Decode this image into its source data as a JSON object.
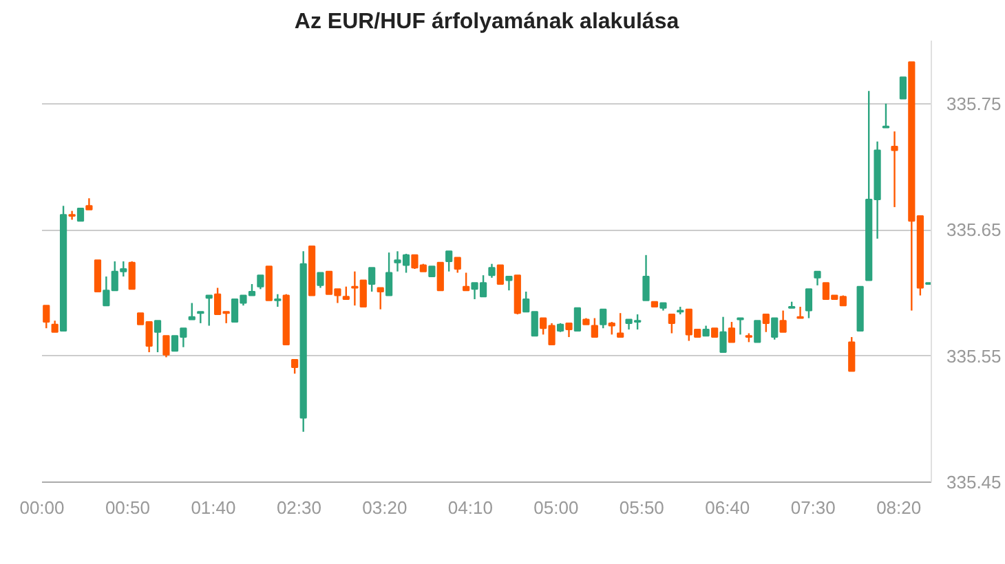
{
  "chart_data": {
    "type": "candlestick",
    "title": "Az EUR/HUF árfolyamának alakulása",
    "x": [
      0.042,
      0.125,
      0.208,
      0.292,
      0.375,
      0.458,
      0.542,
      0.625,
      0.708,
      0.792,
      0.875,
      0.958,
      1.042,
      1.125,
      1.208,
      1.292,
      1.375,
      1.458,
      1.542,
      1.625,
      1.708,
      1.792,
      1.875,
      1.958,
      2.042,
      2.125,
      2.208,
      2.292,
      2.375,
      2.458,
      2.542,
      2.625,
      2.708,
      2.792,
      2.875,
      2.958,
      3.042,
      3.125,
      3.208,
      3.292,
      3.375,
      3.458,
      3.542,
      3.625,
      3.708,
      3.792,
      3.875,
      3.958,
      4.042,
      4.125,
      4.208,
      4.292,
      4.375,
      4.458,
      4.542,
      4.625,
      4.708,
      4.792,
      4.875,
      4.958,
      5.042,
      5.125,
      5.208,
      5.292,
      5.375,
      5.458,
      5.542,
      5.625,
      5.708,
      5.792,
      5.875,
      5.958,
      6.042,
      6.125,
      6.208,
      6.292,
      6.375,
      6.458,
      6.542,
      6.625,
      6.708,
      6.792,
      6.875,
      6.958,
      7.042,
      7.125,
      7.208,
      7.292,
      7.375,
      7.458,
      7.542,
      7.625,
      7.708,
      7.792,
      7.875,
      7.958,
      8.042,
      8.125,
      8.208,
      8.292,
      8.375,
      8.458,
      8.542,
      8.625
    ],
    "ohlc": [
      [
        335.59,
        335.59,
        335.572,
        335.577
      ],
      [
        335.575,
        335.578,
        335.569,
        335.569
      ],
      [
        335.57,
        335.669,
        335.57,
        335.662
      ],
      [
        335.662,
        335.665,
        335.658,
        335.661
      ],
      [
        335.657,
        335.667,
        335.657,
        335.667
      ],
      [
        335.669,
        335.675,
        335.666,
        335.666
      ],
      [
        335.626,
        335.626,
        335.601,
        335.601
      ],
      [
        335.59,
        335.613,
        335.59,
        335.602
      ],
      [
        335.602,
        335.625,
        335.602,
        335.617
      ],
      [
        335.617,
        335.625,
        335.613,
        335.619
      ],
      [
        335.624,
        335.625,
        335.603,
        335.603
      ],
      [
        335.584,
        335.584,
        335.575,
        335.575
      ],
      [
        335.577,
        335.577,
        335.553,
        335.558
      ],
      [
        335.569,
        335.578,
        335.553,
        335.578
      ],
      [
        335.566,
        335.566,
        335.549,
        335.551
      ],
      [
        335.554,
        335.566,
        335.554,
        335.566
      ],
      [
        335.565,
        335.572,
        335.557,
        335.572
      ],
      [
        335.579,
        335.592,
        335.579,
        335.581
      ],
      [
        335.584,
        335.585,
        335.576,
        335.585
      ],
      [
        335.596,
        335.598,
        335.574,
        335.598
      ],
      [
        335.599,
        335.604,
        335.583,
        335.583
      ],
      [
        335.585,
        335.585,
        335.576,
        335.584
      ],
      [
        335.577,
        335.595,
        335.577,
        335.595
      ],
      [
        335.592,
        335.598,
        335.59,
        335.598
      ],
      [
        335.598,
        335.607,
        335.598,
        335.601
      ],
      [
        335.605,
        335.614,
        335.603,
        335.614
      ],
      [
        335.621,
        335.621,
        335.594,
        335.594
      ],
      [
        335.594,
        335.599,
        335.589,
        335.595
      ],
      [
        335.598,
        335.599,
        335.559,
        335.559
      ],
      [
        335.547,
        335.547,
        335.536,
        335.541
      ],
      [
        335.501,
        335.633,
        335.49,
        335.623
      ],
      [
        335.637,
        335.637,
        335.598,
        335.598
      ],
      [
        335.606,
        335.616,
        335.604,
        335.616
      ],
      [
        335.617,
        335.617,
        335.599,
        335.599
      ],
      [
        335.603,
        335.603,
        335.592,
        335.598
      ],
      [
        335.597,
        335.605,
        335.595,
        335.595
      ],
      [
        335.605,
        335.617,
        335.59,
        335.604
      ],
      [
        335.61,
        335.61,
        335.589,
        335.589
      ],
      [
        335.607,
        335.62,
        335.601,
        335.62
      ],
      [
        335.604,
        335.604,
        335.587,
        335.601
      ],
      [
        335.598,
        335.632,
        335.598,
        335.616
      ],
      [
        335.624,
        335.633,
        335.617,
        335.626
      ],
      [
        335.622,
        335.631,
        335.616,
        335.63
      ],
      [
        335.63,
        335.63,
        335.619,
        335.62
      ],
      [
        335.622,
        335.623,
        335.617,
        335.617
      ],
      [
        335.613,
        335.621,
        335.613,
        335.621
      ],
      [
        335.624,
        335.624,
        335.602,
        335.602
      ],
      [
        335.625,
        335.633,
        335.617,
        335.633
      ],
      [
        335.628,
        335.628,
        335.616,
        335.619
      ],
      [
        335.605,
        335.616,
        335.602,
        335.602
      ],
      [
        335.603,
        335.608,
        335.595,
        335.608
      ],
      [
        335.597,
        335.614,
        335.597,
        335.608
      ],
      [
        335.614,
        335.623,
        335.612,
        335.62
      ],
      [
        335.622,
        335.622,
        335.607,
        335.607
      ],
      [
        335.61,
        335.613,
        335.602,
        335.613
      ],
      [
        335.614,
        335.614,
        335.583,
        335.584
      ],
      [
        335.585,
        335.601,
        335.585,
        335.595
      ],
      [
        335.566,
        335.585,
        335.566,
        335.585
      ],
      [
        335.58,
        335.58,
        335.567,
        335.572
      ],
      [
        335.574,
        335.576,
        335.559,
        335.559
      ],
      [
        335.57,
        335.576,
        335.569,
        335.575
      ],
      [
        335.576,
        335.576,
        335.565,
        335.571
      ],
      [
        335.57,
        335.588,
        335.57,
        335.588
      ],
      [
        335.579,
        335.58,
        335.575,
        335.575
      ],
      [
        335.574,
        335.58,
        335.565,
        335.565
      ],
      [
        335.575,
        335.587,
        335.572,
        335.587
      ],
      [
        335.576,
        335.577,
        335.567,
        335.574
      ],
      [
        335.568,
        335.584,
        335.565,
        335.565
      ],
      [
        335.576,
        335.579,
        335.571,
        335.579
      ],
      [
        335.577,
        335.583,
        335.571,
        335.578
      ],
      [
        335.594,
        335.63,
        335.594,
        335.613
      ],
      [
        335.593,
        335.593,
        335.589,
        335.589
      ],
      [
        335.588,
        335.592,
        335.586,
        335.592
      ],
      [
        335.583,
        335.583,
        335.568,
        335.576
      ],
      [
        335.585,
        335.589,
        335.583,
        335.586
      ],
      [
        335.587,
        335.587,
        335.562,
        335.567
      ],
      [
        335.571,
        335.571,
        335.565,
        335.565
      ],
      [
        335.566,
        335.574,
        335.566,
        335.571
      ],
      [
        335.572,
        335.572,
        335.565,
        335.565
      ],
      [
        335.553,
        335.581,
        335.553,
        335.569
      ],
      [
        335.572,
        335.577,
        335.561,
        335.561
      ],
      [
        335.579,
        335.58,
        335.567,
        335.58
      ],
      [
        335.566,
        335.568,
        335.561,
        335.565
      ],
      [
        335.561,
        335.578,
        335.561,
        335.578
      ],
      [
        335.583,
        335.583,
        335.569,
        335.576
      ],
      [
        335.565,
        335.58,
        335.563,
        335.58
      ],
      [
        335.578,
        335.586,
        335.569,
        335.569
      ],
      [
        335.588,
        335.593,
        335.588,
        335.589
      ],
      [
        335.581,
        335.589,
        335.58,
        335.58
      ],
      [
        335.586,
        335.603,
        335.58,
        335.603
      ],
      [
        335.612,
        335.617,
        335.606,
        335.617
      ],
      [
        335.608,
        335.608,
        335.595,
        335.595
      ],
      [
        335.598,
        335.598,
        335.595,
        335.595
      ],
      [
        335.597,
        335.598,
        335.59,
        335.59
      ],
      [
        335.561,
        335.565,
        335.538,
        335.538
      ],
      [
        335.57,
        335.605,
        335.57,
        335.605
      ],
      [
        335.61,
        335.76,
        335.61,
        335.674
      ],
      [
        335.674,
        335.72,
        335.643,
        335.713
      ],
      [
        335.731,
        335.75,
        335.731,
        335.732
      ],
      [
        335.716,
        335.728,
        335.668,
        335.713
      ],
      [
        335.754,
        335.771,
        335.754,
        335.771
      ],
      [
        335.783,
        335.783,
        335.586,
        335.657
      ],
      [
        335.661,
        335.661,
        335.598,
        335.604
      ],
      [
        335.607,
        335.608,
        335.607,
        335.608
      ]
    ],
    "colors": [
      "#ff5a00",
      "#ff5a00",
      "#2ba47f",
      "#ff5a00",
      "#2ba47f",
      "#ff5a00",
      "#ff5a00",
      "#2ba47f",
      "#2ba47f",
      "#2ba47f",
      "#ff5a00",
      "#ff5a00",
      "#ff5a00",
      "#2ba47f",
      "#ff5a00",
      "#2ba47f",
      "#2ba47f",
      "#2ba47f",
      "#2ba47f",
      "#2ba47f",
      "#ff5a00",
      "#ff5a00",
      "#2ba47f",
      "#2ba47f",
      "#2ba47f",
      "#2ba47f",
      "#ff5a00",
      "#2ba47f",
      "#ff5a00",
      "#ff5a00",
      "#2ba47f",
      "#ff5a00",
      "#2ba47f",
      "#ff5a00",
      "#ff5a00",
      "#ff5a00",
      "#ff5a00",
      "#ff5a00",
      "#2ba47f",
      "#ff5a00",
      "#2ba47f",
      "#2ba47f",
      "#2ba47f",
      "#ff5a00",
      "#ff5a00",
      "#2ba47f",
      "#ff5a00",
      "#2ba47f",
      "#ff5a00",
      "#ff5a00",
      "#2ba47f",
      "#2ba47f",
      "#2ba47f",
      "#ff5a00",
      "#2ba47f",
      "#ff5a00",
      "#2ba47f",
      "#2ba47f",
      "#ff5a00",
      "#ff5a00",
      "#2ba47f",
      "#ff5a00",
      "#2ba47f",
      "#ff5a00",
      "#ff5a00",
      "#2ba47f",
      "#ff5a00",
      "#ff5a00",
      "#2ba47f",
      "#2ba47f",
      "#2ba47f",
      "#ff5a00",
      "#2ba47f",
      "#ff5a00",
      "#2ba47f",
      "#ff5a00",
      "#ff5a00",
      "#2ba47f",
      "#ff5a00",
      "#2ba47f",
      "#ff5a00",
      "#2ba47f",
      "#ff5a00",
      "#2ba47f",
      "#ff5a00",
      "#2ba47f",
      "#ff5a00",
      "#2ba47f",
      "#ff5a00",
      "#2ba47f",
      "#2ba47f",
      "#ff5a00",
      "#ff5a00",
      "#ff5a00",
      "#ff5a00",
      "#2ba47f",
      "#2ba47f",
      "#2ba47f",
      "#2ba47f",
      "#ff5a00",
      "#2ba47f",
      "#ff5a00",
      "#ff5a00",
      "#2ba47f"
    ],
    "xlim": [
      0,
      8.65
    ],
    "ylim": [
      335.45,
      335.8
    ],
    "xticks": [
      {
        "value": 0,
        "label": "00:00"
      },
      {
        "value": 0.8333,
        "label": "00:50"
      },
      {
        "value": 1.6667,
        "label": "01:40"
      },
      {
        "value": 2.5,
        "label": "02:30"
      },
      {
        "value": 3.3333,
        "label": "03:20"
      },
      {
        "value": 4.1667,
        "label": "04:10"
      },
      {
        "value": 5,
        "label": "05:00"
      },
      {
        "value": 5.8333,
        "label": "05:50"
      },
      {
        "value": 6.6667,
        "label": "06:40"
      },
      {
        "value": 7.5,
        "label": "07:30"
      },
      {
        "value": 8.3333,
        "label": "08:20"
      }
    ],
    "yticks": [
      335.45,
      335.55,
      335.65,
      335.75
    ],
    "grid": "y"
  }
}
